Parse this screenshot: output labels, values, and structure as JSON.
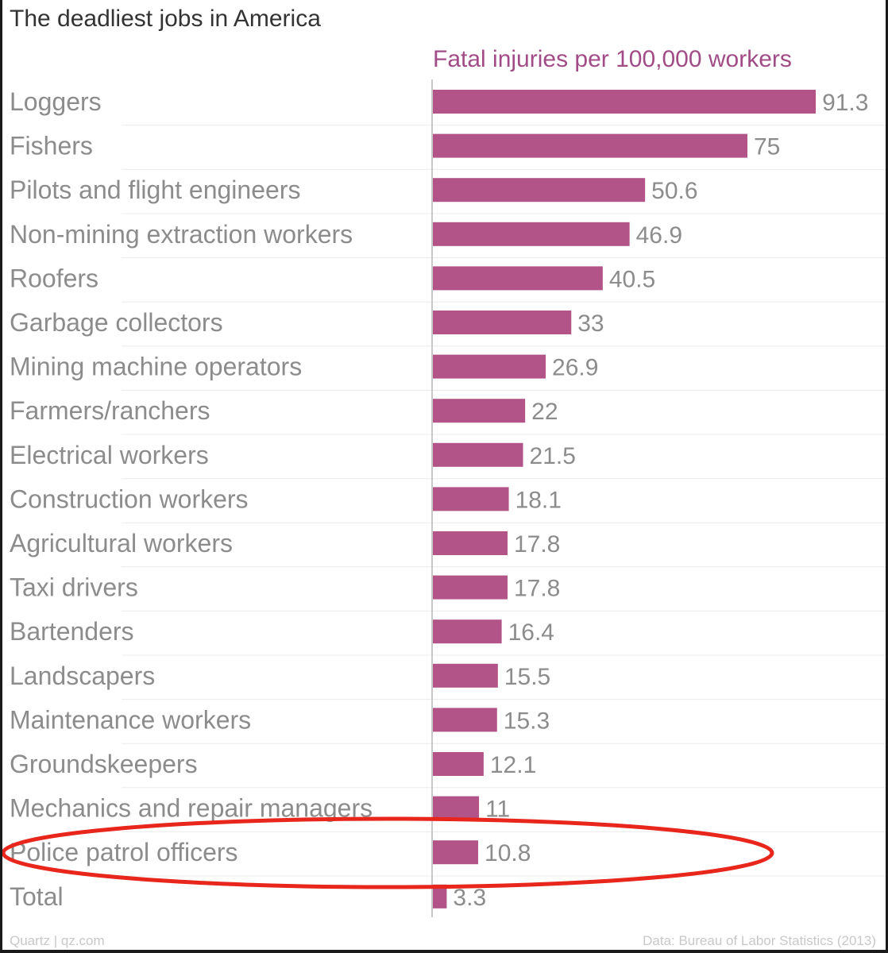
{
  "colors": {
    "bar": "#b25487",
    "subtitle": "#a14c86",
    "label": "#8c8c8c",
    "grid": "#ececec",
    "highlight": "#e8261c"
  },
  "footer": {
    "source_left": "Quartz | qz.com",
    "source_right": "Data: Bureau of Labor Statistics (2013)"
  },
  "chart_data": {
    "type": "bar",
    "orientation": "horizontal",
    "title": "The deadliest jobs in America",
    "subtitle": "Fatal injuries per 100,000 workers",
    "categories": [
      "Loggers",
      "Fishers",
      "Pilots and flight engineers",
      "Non-mining extraction workers",
      "Roofers",
      "Garbage collectors",
      "Mining machine operators",
      "Farmers/ranchers",
      "Electrical workers",
      "Construction workers",
      "Agricultural workers",
      "Taxi drivers",
      "Bartenders",
      "Landscapers",
      "Maintenance workers",
      "Groundskeepers",
      "Mechanics and repair managers",
      "Police patrol officers",
      "Total"
    ],
    "values": [
      91.3,
      75,
      50.6,
      46.9,
      40.5,
      33,
      26.9,
      22,
      21.5,
      18.1,
      17.8,
      17.8,
      16.4,
      15.5,
      15.3,
      12.1,
      11,
      10.8,
      3.3
    ],
    "value_labels": [
      "91.3",
      "75",
      "50.6",
      "46.9",
      "40.5",
      "33",
      "26.9",
      "22",
      "21.5",
      "18.1",
      "17.8",
      "17.8",
      "16.4",
      "15.5",
      "15.3",
      "12.1",
      "11",
      "10.8",
      "3.3"
    ],
    "xlim": [
      0,
      100
    ],
    "grid": true,
    "highlighted_category": "Police patrol officers"
  }
}
